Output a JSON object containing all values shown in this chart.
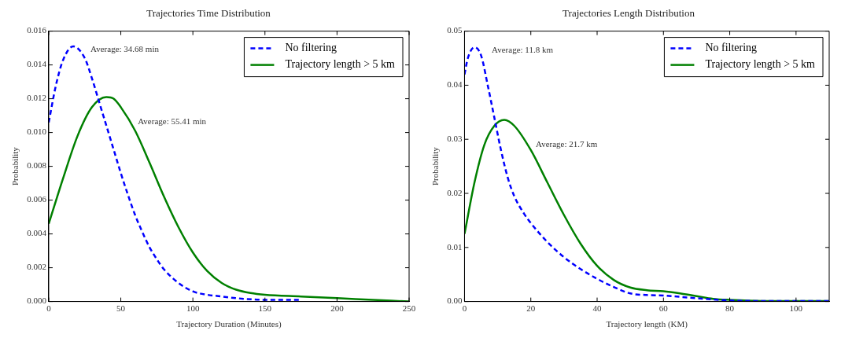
{
  "chart_data": [
    {
      "type": "line",
      "title": "Trajectories Time Distribution",
      "xlabel": "Trajectory Duration (Minutes)",
      "ylabel": "Probability",
      "xlim": [
        0,
        250
      ],
      "xticks": [
        0,
        50,
        100,
        150,
        200,
        250
      ],
      "ylim": [
        0,
        0.016
      ],
      "yticks": [
        {
          "value": 0,
          "label": "0.000"
        },
        {
          "value": 0.002,
          "label": "0.002"
        },
        {
          "value": 0.004,
          "label": "0.004"
        },
        {
          "value": 0.006,
          "label": "0.006"
        },
        {
          "value": 0.008,
          "label": "0.008"
        },
        {
          "value": 0.01,
          "label": "0.010"
        },
        {
          "value": 0.012,
          "label": "0.012"
        },
        {
          "value": 0.014,
          "label": "0.014"
        },
        {
          "value": 0.016,
          "label": "0.016"
        }
      ],
      "grid": false,
      "legend": "top right",
      "marker": "none",
      "series": [
        {
          "name": "No filtering",
          "color": "#0000ff",
          "line_style": "dashed",
          "x": [
            0,
            5,
            10,
            17,
            25,
            30,
            35,
            40,
            45,
            50,
            55,
            60,
            65,
            70,
            75,
            80,
            90,
            100,
            110,
            120,
            130,
            150,
            175
          ],
          "values": [
            0.0106,
            0.0128,
            0.0143,
            0.0151,
            0.0144,
            0.0132,
            0.0118,
            0.0104,
            0.009,
            0.0076,
            0.0063,
            0.0051,
            0.0041,
            0.0032,
            0.0025,
            0.0019,
            0.0011,
            0.0006,
            0.0004,
            0.0003,
            0.0002,
            0.0001,
            0.0001
          ]
        },
        {
          "name": "Trajectory length > 5 km",
          "color": "#008000",
          "line_style": "solid",
          "x": [
            0,
            10,
            20,
            30,
            40,
            45,
            50,
            60,
            70,
            80,
            90,
            100,
            110,
            120,
            130,
            140,
            150,
            175,
            200,
            225,
            250
          ],
          "values": [
            0.0046,
            0.0073,
            0.0098,
            0.0115,
            0.0121,
            0.012,
            0.0115,
            0.0101,
            0.0082,
            0.0062,
            0.0044,
            0.0029,
            0.0018,
            0.0011,
            0.0007,
            0.0005,
            0.0004,
            0.0003,
            0.0002,
            0.0001,
            0
          ]
        }
      ],
      "annotations": [
        "Average: 34.68 min",
        "Average: 55.41 min"
      ]
    },
    {
      "type": "line",
      "title": "Trajectories Length Distribution",
      "xlabel": "Trajectory length (KM)",
      "ylabel": "Probability",
      "xlim": [
        0,
        110
      ],
      "xticks": [
        0,
        20,
        40,
        60,
        80,
        100
      ],
      "ylim": [
        0,
        0.05
      ],
      "yticks": [
        {
          "value": 0,
          "label": "0.00"
        },
        {
          "value": 0.01,
          "label": "0.01"
        },
        {
          "value": 0.02,
          "label": "0.02"
        },
        {
          "value": 0.03,
          "label": "0.03"
        },
        {
          "value": 0.04,
          "label": "0.04"
        },
        {
          "value": 0.05,
          "label": "0.05"
        }
      ],
      "grid": false,
      "legend": "top right",
      "marker": "none",
      "series": [
        {
          "name": "No filtering",
          "color": "#0000ff",
          "line_style": "dashed",
          "x": [
            0,
            1,
            3,
            5,
            7,
            9,
            11,
            13,
            15,
            18,
            20,
            25,
            30,
            35,
            40,
            45,
            50,
            55,
            60,
            70,
            80,
            90,
            110
          ],
          "values": [
            0.042,
            0.045,
            0.047,
            0.0455,
            0.04,
            0.034,
            0.028,
            0.023,
            0.0195,
            0.0162,
            0.0145,
            0.011,
            0.0082,
            0.006,
            0.0042,
            0.0027,
            0.0015,
            0.0012,
            0.0011,
            0.0006,
            0.0002,
            0.0001,
            0.0001
          ]
        },
        {
          "name": "Trajectory length > 5 km",
          "color": "#008000",
          "line_style": "solid",
          "x": [
            0,
            3,
            6,
            9,
            12,
            15,
            20,
            25,
            30,
            35,
            40,
            45,
            50,
            55,
            60,
            65,
            70,
            75,
            80,
            90,
            110
          ],
          "values": [
            0.0125,
            0.022,
            0.029,
            0.0325,
            0.0336,
            0.0325,
            0.028,
            0.022,
            0.016,
            0.0107,
            0.0066,
            0.004,
            0.0026,
            0.0021,
            0.0019,
            0.0015,
            0.001,
            0.0005,
            0.0003,
            0.0001,
            0.0001
          ]
        }
      ],
      "annotations": [
        "Average: 11.8 km",
        "Average: 21.7 km"
      ]
    }
  ]
}
